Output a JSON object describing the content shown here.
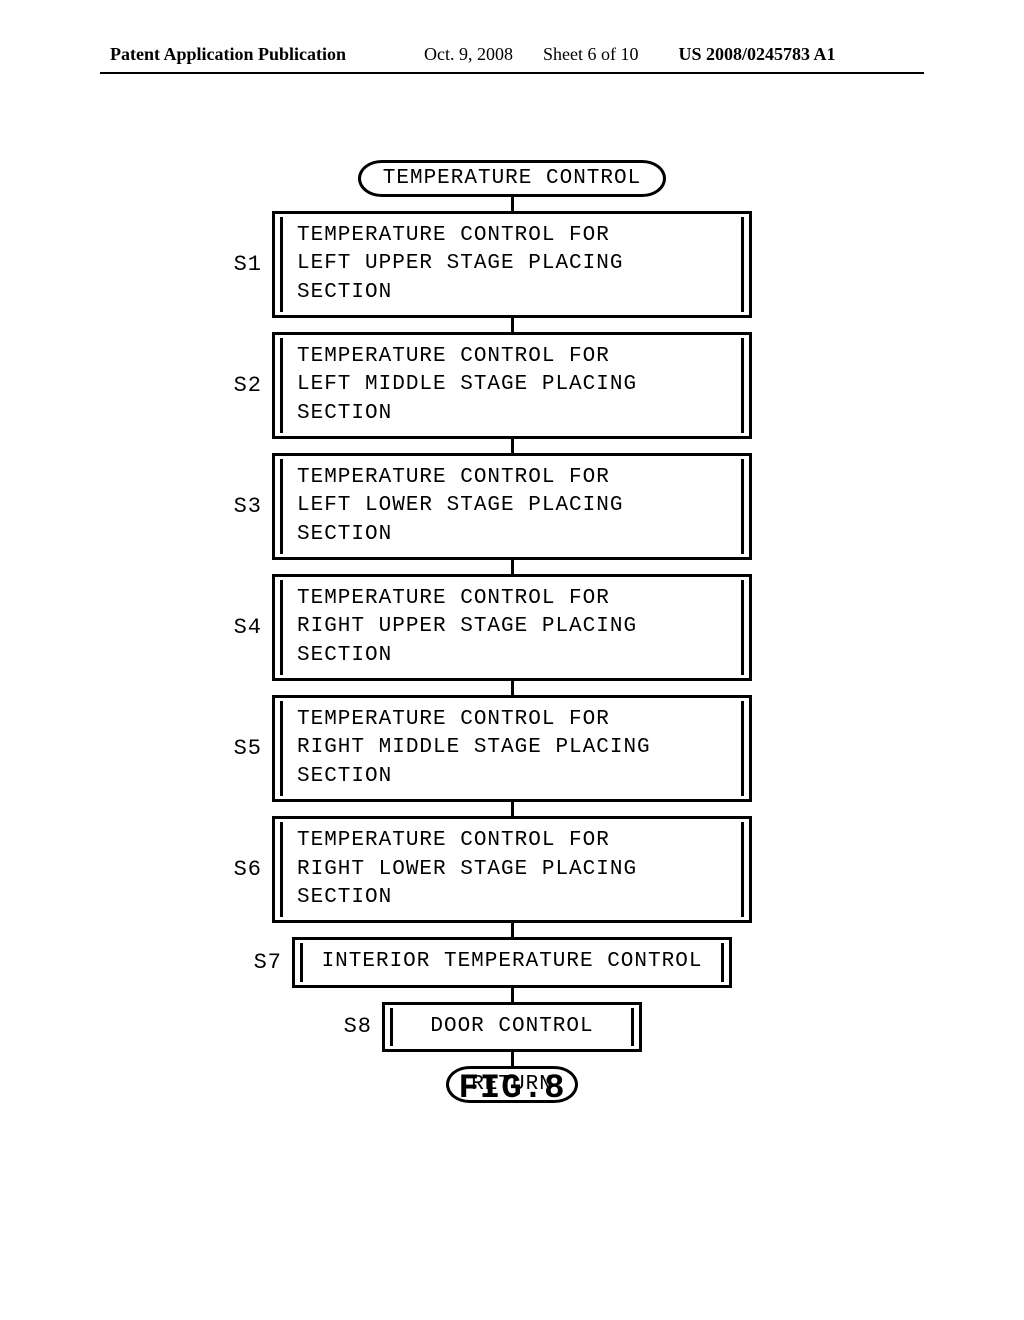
{
  "header": {
    "pub_left": "Patent Application Publication",
    "pub_date": "Oct. 9, 2008",
    "pub_sheet": "Sheet 6 of 10",
    "pub_num": "US 2008/0245783 A1"
  },
  "flowchart": {
    "type": "flowchart",
    "start_label": "TEMPERATURE CONTROL",
    "end_label": "RETURN",
    "steps": [
      {
        "id": "S1",
        "text": "TEMPERATURE CONTROL FOR\nLEFT UPPER STAGE PLACING SECTION",
        "width": "wbig"
      },
      {
        "id": "S2",
        "text": "TEMPERATURE CONTROL FOR\nLEFT MIDDLE STAGE PLACING SECTION",
        "width": "wbig"
      },
      {
        "id": "S3",
        "text": "TEMPERATURE CONTROL FOR\nLEFT LOWER STAGE PLACING SECTION",
        "width": "wbig"
      },
      {
        "id": "S4",
        "text": "TEMPERATURE CONTROL FOR\nRIGHT UPPER STAGE PLACING SECTION",
        "width": "wbig"
      },
      {
        "id": "S5",
        "text": "TEMPERATURE CONTROL FOR\nRIGHT MIDDLE STAGE PLACING SECTION",
        "width": "wbig"
      },
      {
        "id": "S6",
        "text": "TEMPERATURE CONTROL FOR\nRIGHT LOWER STAGE PLACING SECTION",
        "width": "wbig"
      },
      {
        "id": "S7",
        "text": "INTERIOR TEMPERATURE CONTROL",
        "width": "wmed",
        "single": true
      },
      {
        "id": "S8",
        "text": "DOOR CONTROL",
        "width": "wsm",
        "single": true
      }
    ],
    "connector_height": 14,
    "box_border_color": "#000000",
    "background_color": "#ffffff",
    "font_family": "Courier New",
    "font_size": 21
  },
  "figure_caption": "FIG.8"
}
